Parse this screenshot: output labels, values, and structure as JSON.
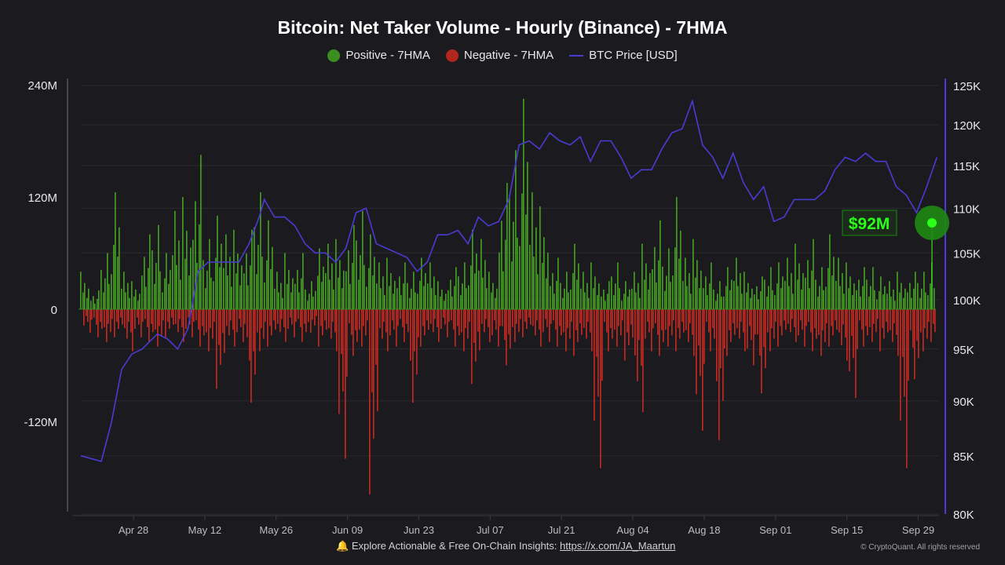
{
  "chart_data": {
    "type": "bar+line",
    "title": "Bitcoin: Net Taker Volume - Hourly (Binance) - 7HMA",
    "legend": [
      {
        "label": "Positive - 7HMA",
        "color": "#3c8f1e"
      },
      {
        "label": "Negative - 7HMA",
        "color": "#b3261e"
      },
      {
        "label": "BTC Price [USD]",
        "color": "#4a3bd1"
      }
    ],
    "legend_position": "top-center",
    "left_axis": {
      "ticks": [
        "240M",
        "120M",
        "0",
        "-120M"
      ],
      "tick_values": [
        240,
        120,
        0,
        -120
      ],
      "ylim": [
        -220,
        250
      ],
      "unit": "M USD"
    },
    "right_axis": {
      "ticks": [
        "125K",
        "120K",
        "115K",
        "110K",
        "105K",
        "100K",
        "95K",
        "90K",
        "85K",
        "80K"
      ],
      "tick_values": [
        125,
        120,
        115,
        110,
        105,
        100,
        95,
        90,
        85,
        80
      ],
      "scale": "log",
      "ylim": [
        80,
        125
      ],
      "unit": "K USD"
    },
    "x_ticks": [
      "Apr 28",
      "May 12",
      "May 26",
      "Jun 09",
      "Jun 23",
      "Jul 07",
      "Jul 21",
      "Aug 04",
      "Aug 18",
      "Sep 01",
      "Sep 15",
      "Sep 29"
    ],
    "x_start": "Apr 16",
    "bin_days": 2,
    "positive_volume_M": [
      40,
      20,
      60,
      125,
      40,
      30,
      80,
      90,
      60,
      105,
      120,
      165,
      75,
      100,
      80,
      85,
      85,
      125,
      95,
      40,
      60,
      60,
      30,
      65,
      70,
      75,
      90,
      105,
      80,
      50,
      55,
      50,
      40,
      55,
      50,
      30,
      45,
      50,
      85,
      75,
      40,
      135,
      170,
      225,
      125,
      110,
      55,
      40,
      70,
      40,
      50,
      30,
      50,
      30,
      40,
      70,
      95,
      65,
      120,
      55,
      75,
      50,
      30,
      45,
      55,
      40,
      35,
      45,
      50,
      55,
      70,
      75,
      45,
      80,
      55,
      50,
      45,
      45,
      35,
      30,
      40,
      40,
      40,
      50,
      92
    ],
    "negative_volume_M": [
      25,
      30,
      35,
      30,
      45,
      30,
      35,
      40,
      30,
      35,
      30,
      40,
      45,
      85,
      40,
      35,
      100,
      45,
      40,
      35,
      30,
      35,
      25,
      40,
      45,
      160,
      50,
      40,
      198,
      45,
      40,
      35,
      100,
      40,
      35,
      30,
      40,
      45,
      80,
      35,
      40,
      60,
      35,
      30,
      40,
      35,
      40,
      45,
      50,
      45,
      170,
      45,
      40,
      55,
      110,
      45,
      50,
      40,
      45,
      50,
      130,
      45,
      140,
      50,
      45,
      60,
      90,
      45,
      40,
      35,
      40,
      45,
      50,
      40,
      55,
      95,
      40,
      35,
      45,
      50,
      170,
      75,
      45,
      35,
      30
    ],
    "btc_price_K": [
      [
        0,
        85
      ],
      [
        4,
        84.5
      ],
      [
        6,
        88
      ],
      [
        8,
        93
      ],
      [
        10,
        94.5
      ],
      [
        12,
        95
      ],
      [
        15,
        96.5
      ],
      [
        17,
        96
      ],
      [
        19,
        95
      ],
      [
        21,
        97
      ],
      [
        23,
        103
      ],
      [
        25,
        104
      ],
      [
        27,
        104
      ],
      [
        29,
        104
      ],
      [
        31,
        104
      ],
      [
        33,
        106
      ],
      [
        35,
        109
      ],
      [
        36,
        111
      ],
      [
        38,
        109
      ],
      [
        40,
        109
      ],
      [
        42,
        108
      ],
      [
        44,
        106
      ],
      [
        46,
        105
      ],
      [
        48,
        105
      ],
      [
        50,
        104
      ],
      [
        52,
        105.5
      ],
      [
        54,
        109.5
      ],
      [
        56,
        110
      ],
      [
        58,
        106
      ],
      [
        60,
        105.5
      ],
      [
        62,
        105
      ],
      [
        64,
        104.5
      ],
      [
        66,
        103
      ],
      [
        68,
        104
      ],
      [
        70,
        107
      ],
      [
        72,
        107
      ],
      [
        74,
        107.5
      ],
      [
        76,
        106
      ],
      [
        78,
        109
      ],
      [
        80,
        108
      ],
      [
        82,
        108.5
      ],
      [
        84,
        111
      ],
      [
        86,
        117.5
      ],
      [
        88,
        118
      ],
      [
        90,
        117
      ],
      [
        92,
        119
      ],
      [
        94,
        118
      ],
      [
        96,
        117.5
      ],
      [
        98,
        118.5
      ],
      [
        100,
        115.5
      ],
      [
        102,
        118
      ],
      [
        104,
        118
      ],
      [
        106,
        116
      ],
      [
        108,
        113.5
      ],
      [
        110,
        114.5
      ],
      [
        112,
        114.5
      ],
      [
        114,
        117
      ],
      [
        116,
        119
      ],
      [
        118,
        119.5
      ],
      [
        120,
        123
      ],
      [
        122,
        117.5
      ],
      [
        124,
        116
      ],
      [
        126,
        113.5
      ],
      [
        128,
        116.5
      ],
      [
        130,
        113
      ],
      [
        132,
        111
      ],
      [
        134,
        112.5
      ],
      [
        136,
        108.5
      ],
      [
        138,
        109
      ],
      [
        140,
        111
      ],
      [
        142,
        111
      ],
      [
        144,
        111
      ],
      [
        146,
        112
      ],
      [
        148,
        114.5
      ],
      [
        150,
        116
      ],
      [
        152,
        115.5
      ],
      [
        154,
        116.5
      ],
      [
        156,
        115.5
      ],
      [
        158,
        115.5
      ],
      [
        160,
        112.5
      ],
      [
        162,
        111.5
      ],
      [
        164,
        109.5
      ],
      [
        166,
        112.5
      ],
      [
        168,
        116
      ]
    ],
    "annotation": {
      "label": "$92M",
      "value": 92
    }
  },
  "footer": {
    "bell": "🔔",
    "text": "Explore Actionable & Free On-Chain Insights: ",
    "link": "https://x.com/JA_Maartun",
    "copyright": "© CryptoQuant. All rights reserved"
  }
}
